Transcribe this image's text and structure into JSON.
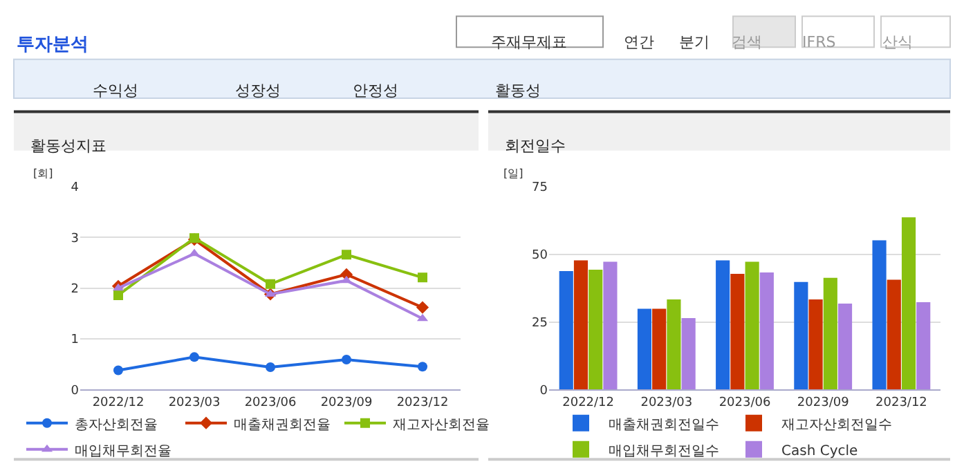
{
  "chart_data": [
    {
      "type": "other",
      "title": "투자분석",
      "annotations": [
        "주재무제표",
        "연간",
        "분기",
        "검색",
        "IFRS",
        "산식",
        "수익성",
        "성장성",
        "안정성",
        "활동성"
      ]
    },
    {
      "type": "line",
      "title": "활동성지표",
      "ylabel": "[회]",
      "categories": [
        "2022/12",
        "2023/03",
        "2023/06",
        "2023/09",
        "2023/12"
      ],
      "ylim": [
        0,
        4
      ],
      "yticks": [
        0,
        1,
        2,
        3,
        4
      ],
      "grid": "y",
      "legend": "bottom",
      "series": [
        {
          "name": "총자산회전율",
          "color": "#1e6ae0",
          "marker": "circle",
          "values": [
            0.38,
            0.64,
            0.44,
            0.59,
            0.45
          ]
        },
        {
          "name": "매출채권회전율",
          "color": "#cc3300",
          "marker": "diamond",
          "values": [
            2.04,
            2.96,
            1.88,
            2.27,
            1.62
          ]
        },
        {
          "name": "재고자산회전율",
          "color": "#88c010",
          "marker": "square",
          "values": [
            1.86,
            2.99,
            2.08,
            2.66,
            2.21
          ]
        },
        {
          "name": "매입채무회전율",
          "color": "#aa80e0",
          "marker": "triangle",
          "values": [
            2.0,
            2.68,
            1.88,
            2.15,
            1.4
          ]
        }
      ]
    },
    {
      "type": "bar",
      "title": "회전일수",
      "ylabel": "[일]",
      "categories": [
        "2022/12",
        "2023/03",
        "2023/06",
        "2023/09",
        "2023/12"
      ],
      "ylim": [
        0,
        75
      ],
      "yticks": [
        0,
        25,
        50,
        75
      ],
      "grid": "y",
      "legend": "bottom",
      "series": [
        {
          "name": "매출채권회전일수",
          "color": "#1e6ae0",
          "values": [
            43.8,
            29.9,
            47.8,
            39.8,
            55.2
          ]
        },
        {
          "name": "재고자산회전일수",
          "color": "#cc3300",
          "values": [
            47.8,
            29.9,
            42.8,
            33.3,
            40.6
          ]
        },
        {
          "name": "매입채무회전일수",
          "color": "#88c010",
          "values": [
            44.3,
            33.3,
            47.3,
            41.3,
            63.7
          ]
        },
        {
          "name": "Cash Cycle",
          "color": "#aa80e0",
          "values": [
            47.3,
            26.4,
            43.3,
            31.8,
            32.3
          ]
        }
      ]
    }
  ]
}
